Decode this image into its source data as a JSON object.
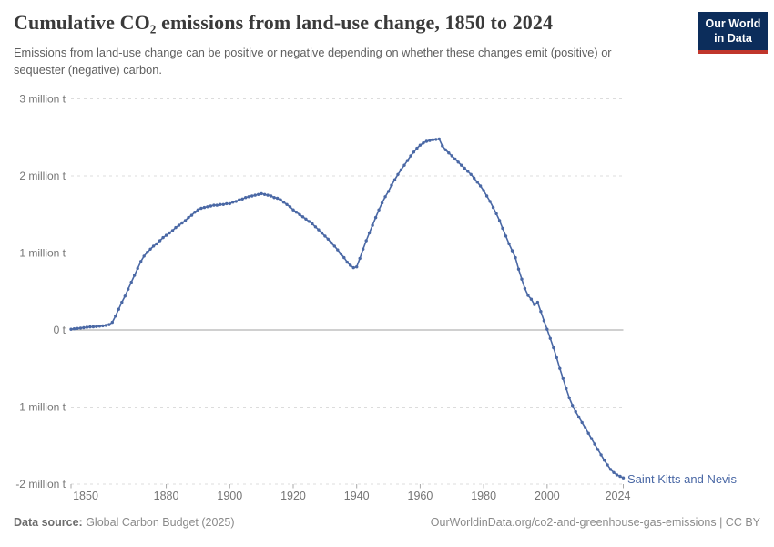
{
  "header": {
    "title": "Cumulative CO₂ emissions from land-use change, 1850 to 2024",
    "subtitle": "Emissions from land-use change can be positive or negative depending on whether these changes emit (positive) or sequester (negative) carbon."
  },
  "logo": {
    "line1": "Our World",
    "line2": "in Data"
  },
  "chart_data": {
    "type": "line",
    "title": "Cumulative CO₂ emissions from land-use change, 1850 to 2024",
    "entity": "Saint Kitts and Nevis",
    "unit": "t",
    "xlim": [
      1850,
      2024
    ],
    "ylim": [
      -2000000,
      3000000
    ],
    "grid": "horizontal-dashed",
    "legend_position": "end-of-line-label",
    "y_ticks": [
      {
        "label": "3 million t",
        "value": 3
      },
      {
        "label": "2 million t",
        "value": 2
      },
      {
        "label": "1 million t",
        "value": 1
      },
      {
        "label": "0 t",
        "value": 0
      },
      {
        "label": "-1 million t",
        "value": -1
      },
      {
        "label": "-2 million t",
        "value": -2
      }
    ],
    "x_ticks": [
      1850,
      1880,
      1900,
      1920,
      1940,
      1960,
      1980,
      2000,
      2024
    ],
    "start_year": 1850,
    "end_year": 2024,
    "series": [
      {
        "name": "Saint Kitts and Nevis",
        "values_million_t": [
          0.01,
          0.015,
          0.02,
          0.025,
          0.03,
          0.035,
          0.04,
          0.042,
          0.045,
          0.05,
          0.055,
          0.06,
          0.07,
          0.1,
          0.18,
          0.27,
          0.36,
          0.44,
          0.53,
          0.62,
          0.71,
          0.8,
          0.89,
          0.96,
          1.01,
          1.05,
          1.09,
          1.12,
          1.16,
          1.2,
          1.23,
          1.26,
          1.29,
          1.33,
          1.36,
          1.39,
          1.42,
          1.46,
          1.49,
          1.53,
          1.56,
          1.58,
          1.59,
          1.6,
          1.61,
          1.62,
          1.62,
          1.63,
          1.63,
          1.64,
          1.64,
          1.66,
          1.67,
          1.69,
          1.7,
          1.72,
          1.73,
          1.74,
          1.75,
          1.76,
          1.77,
          1.76,
          1.75,
          1.74,
          1.72,
          1.71,
          1.69,
          1.66,
          1.63,
          1.6,
          1.56,
          1.53,
          1.5,
          1.47,
          1.44,
          1.41,
          1.38,
          1.34,
          1.3,
          1.26,
          1.22,
          1.18,
          1.13,
          1.09,
          1.04,
          0.99,
          0.94,
          0.88,
          0.84,
          0.81,
          0.82,
          0.93,
          1.05,
          1.16,
          1.26,
          1.36,
          1.46,
          1.56,
          1.65,
          1.73,
          1.8,
          1.88,
          1.95,
          2.02,
          2.08,
          2.14,
          2.2,
          2.26,
          2.31,
          2.36,
          2.4,
          2.43,
          2.45,
          2.46,
          2.47,
          2.475,
          2.48,
          2.39,
          2.34,
          2.3,
          2.26,
          2.22,
          2.18,
          2.14,
          2.1,
          2.06,
          2.02,
          1.97,
          1.92,
          1.87,
          1.81,
          1.74,
          1.67,
          1.59,
          1.51,
          1.42,
          1.32,
          1.22,
          1.12,
          1.03,
          0.94,
          0.79,
          0.66,
          0.54,
          0.45,
          0.4,
          0.33,
          0.36,
          0.24,
          0.12,
          0.01,
          -0.11,
          -0.23,
          -0.36,
          -0.5,
          -0.63,
          -0.76,
          -0.88,
          -0.98,
          -1.06,
          -1.13,
          -1.2,
          -1.27,
          -1.34,
          -1.41,
          -1.48,
          -1.55,
          -1.62,
          -1.69,
          -1.75,
          -1.81,
          -1.85,
          -1.88,
          -1.9,
          -1.92
        ]
      }
    ],
    "colors": {
      "line": "#4a68a5",
      "grid": "#dcdcdc",
      "zero_line": "#a1a1a1",
      "axis_text": "#757575",
      "tick_mark": "#a8a8a8",
      "entity_label": "#4a68a5"
    }
  },
  "footer": {
    "source_label": "Data source:",
    "source_value": " Global Carbon Budget (2025)",
    "credit": "OurWorldinData.org/co2-and-greenhouse-gas-emissions | CC BY"
  }
}
